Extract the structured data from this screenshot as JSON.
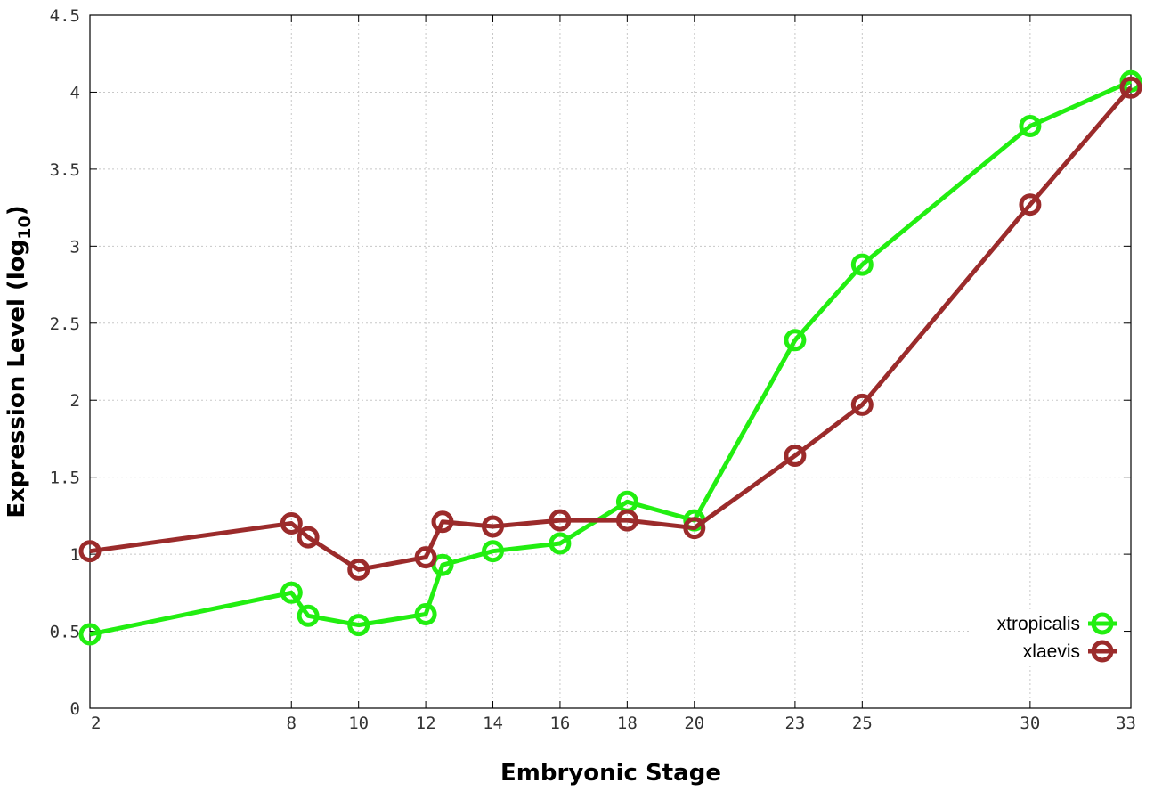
{
  "chart_data": {
    "type": "line",
    "xlabel": "Embryonic Stage",
    "ylabel": {
      "main": "Expression Level (log",
      "sub": "10",
      "end": ")"
    },
    "x_ticks": [
      "2",
      "8",
      "10",
      "12",
      "14",
      "16",
      "18",
      "20",
      "23",
      "25",
      "30",
      "33"
    ],
    "y_ticks": [
      "0",
      "0.5",
      "1",
      "1.5",
      "2",
      "2.5",
      "3",
      "3.5",
      "4",
      "4.5"
    ],
    "ylim": [
      0,
      4.5
    ],
    "grid": true,
    "legend_position": "bottom-right",
    "series": [
      {
        "name": "xtropicalis",
        "color": "#22ee11",
        "points": [
          {
            "x": "2",
            "y": 0.48
          },
          {
            "x": "8",
            "y": 0.75
          },
          {
            "x": "8.5",
            "y": 0.6
          },
          {
            "x": "10",
            "y": 0.54
          },
          {
            "x": "12",
            "y": 0.61
          },
          {
            "x": "12.5",
            "y": 0.93
          },
          {
            "x": "14",
            "y": 1.02
          },
          {
            "x": "16",
            "y": 1.07
          },
          {
            "x": "18",
            "y": 1.34
          },
          {
            "x": "20",
            "y": 1.22
          },
          {
            "x": "23",
            "y": 2.39
          },
          {
            "x": "25",
            "y": 2.88
          },
          {
            "x": "30",
            "y": 3.78
          },
          {
            "x": "33",
            "y": 4.07
          }
        ]
      },
      {
        "name": "xlaevis",
        "color": "#9b2b2b",
        "points": [
          {
            "x": "2",
            "y": 1.02
          },
          {
            "x": "8",
            "y": 1.2
          },
          {
            "x": "8.5",
            "y": 1.11
          },
          {
            "x": "10",
            "y": 0.9
          },
          {
            "x": "12",
            "y": 0.98
          },
          {
            "x": "12.5",
            "y": 1.21
          },
          {
            "x": "14",
            "y": 1.18
          },
          {
            "x": "16",
            "y": 1.22
          },
          {
            "x": "18",
            "y": 1.22
          },
          {
            "x": "20",
            "y": 1.17
          },
          {
            "x": "23",
            "y": 1.64
          },
          {
            "x": "25",
            "y": 1.97
          },
          {
            "x": "30",
            "y": 3.27
          },
          {
            "x": "33",
            "y": 4.03
          }
        ]
      }
    ]
  }
}
